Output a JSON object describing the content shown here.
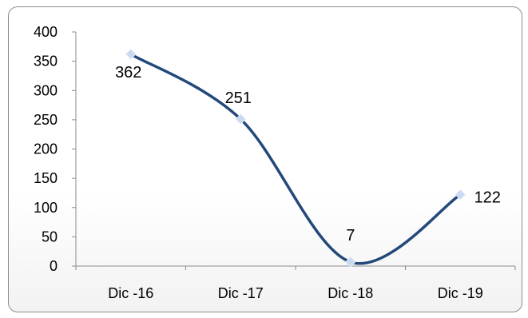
{
  "chart_data": {
    "type": "line",
    "categories": [
      "Dic -16",
      "Dic -17",
      "Dic -18",
      "Dic -19"
    ],
    "series": [
      {
        "values": [
          362,
          251,
          7,
          122
        ],
        "color": "#23497a",
        "marker_color": "#c9daf0"
      }
    ],
    "data_labels": [
      "362",
      "251",
      "7",
      "122"
    ],
    "y_ticks": [
      "0",
      "50",
      "100",
      "150",
      "200",
      "250",
      "300",
      "350",
      "400"
    ],
    "ylim": [
      0,
      400
    ],
    "smooth": true,
    "grid": false,
    "legend": "none"
  }
}
